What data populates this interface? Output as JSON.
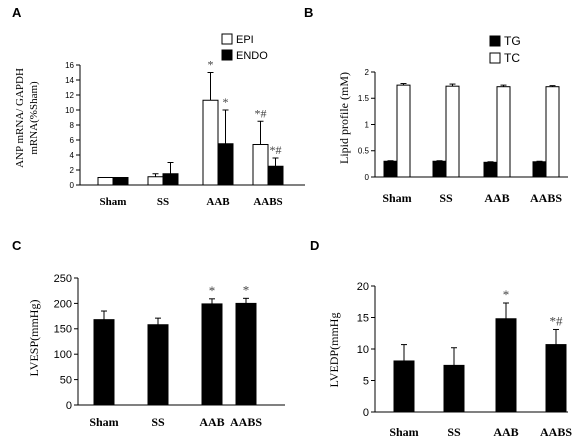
{
  "figure": {
    "panel_letters": [
      "A",
      "B",
      "C",
      "D"
    ]
  },
  "chart_data": [
    {
      "panel": "A",
      "type": "bar",
      "categories": [
        "Sham",
        "SS",
        "AAB",
        "AABS"
      ],
      "ylabel": "ANP mRNA/ GAPDH mRNA(%Sham)",
      "ylabel_lines": [
        "ANP mRNA/ GAPDH",
        "mRNA(%Sham)"
      ],
      "ylim": [
        0,
        16
      ],
      "yticks": [
        0,
        2,
        4,
        6,
        8,
        10,
        12,
        14,
        16
      ],
      "legend_position": "top-right",
      "series": [
        {
          "name": "EPI",
          "color": "#ffffff",
          "values": [
            1.0,
            1.1,
            11.3,
            5.4
          ],
          "errors": [
            0,
            0.4,
            3.7,
            3.1
          ]
        },
        {
          "name": "ENDO",
          "color": "#000000",
          "values": [
            1.0,
            1.5,
            5.5,
            2.5
          ],
          "errors": [
            0,
            1.5,
            4.5,
            1.1
          ]
        }
      ],
      "annotations": [
        {
          "category": 2,
          "series": 0,
          "text": "*"
        },
        {
          "category": 2,
          "series": 1,
          "text": "*"
        },
        {
          "category": 3,
          "series": 0,
          "text": "*#"
        },
        {
          "category": 3,
          "series": 1,
          "text": "*#"
        }
      ]
    },
    {
      "panel": "B",
      "type": "bar",
      "categories": [
        "Sham",
        "SS",
        "AAB",
        "AABS"
      ],
      "ylabel": "Lipid profile (mM)",
      "ylim": [
        0,
        2
      ],
      "yticks": [
        0,
        0.5,
        1,
        1.5,
        2
      ],
      "legend_position": "top-right",
      "series": [
        {
          "name": "TG",
          "color": "#000000",
          "values": [
            0.3,
            0.3,
            0.28,
            0.29
          ],
          "errors": [
            0.01,
            0.01,
            0.01,
            0.01
          ]
        },
        {
          "name": "TC",
          "color": "#ffffff",
          "values": [
            1.75,
            1.73,
            1.72,
            1.72
          ],
          "errors": [
            0.03,
            0.04,
            0.03,
            0.02
          ]
        }
      ],
      "annotations": []
    },
    {
      "panel": "C",
      "type": "bar",
      "categories": [
        "Sham",
        "SS",
        "AAB",
        "AABS"
      ],
      "ylabel": "LVESP(mmHg)",
      "ylim": [
        0,
        250
      ],
      "yticks": [
        0,
        50,
        100,
        150,
        200,
        250
      ],
      "series": [
        {
          "color": "#000000",
          "values": [
            168,
            158,
            199,
            200
          ],
          "errors": [
            17,
            13,
            10,
            10
          ]
        }
      ],
      "annotations": [
        {
          "category": 2,
          "series": 0,
          "text": "*"
        },
        {
          "category": 3,
          "series": 0,
          "text": "*"
        }
      ]
    },
    {
      "panel": "D",
      "type": "bar",
      "categories": [
        "Sham",
        "SS",
        "AAB",
        "AABS"
      ],
      "ylabel": "LVEDP(mmHg",
      "ylim": [
        0,
        20
      ],
      "yticks": [
        0,
        5,
        10,
        15,
        20
      ],
      "series": [
        {
          "color": "#000000",
          "values": [
            8.1,
            7.4,
            14.8,
            10.7
          ],
          "errors": [
            2.6,
            2.8,
            2.5,
            2.4
          ]
        }
      ],
      "annotations": [
        {
          "category": 2,
          "series": 0,
          "text": "*"
        },
        {
          "category": 3,
          "series": 0,
          "text": "*#"
        }
      ]
    }
  ]
}
